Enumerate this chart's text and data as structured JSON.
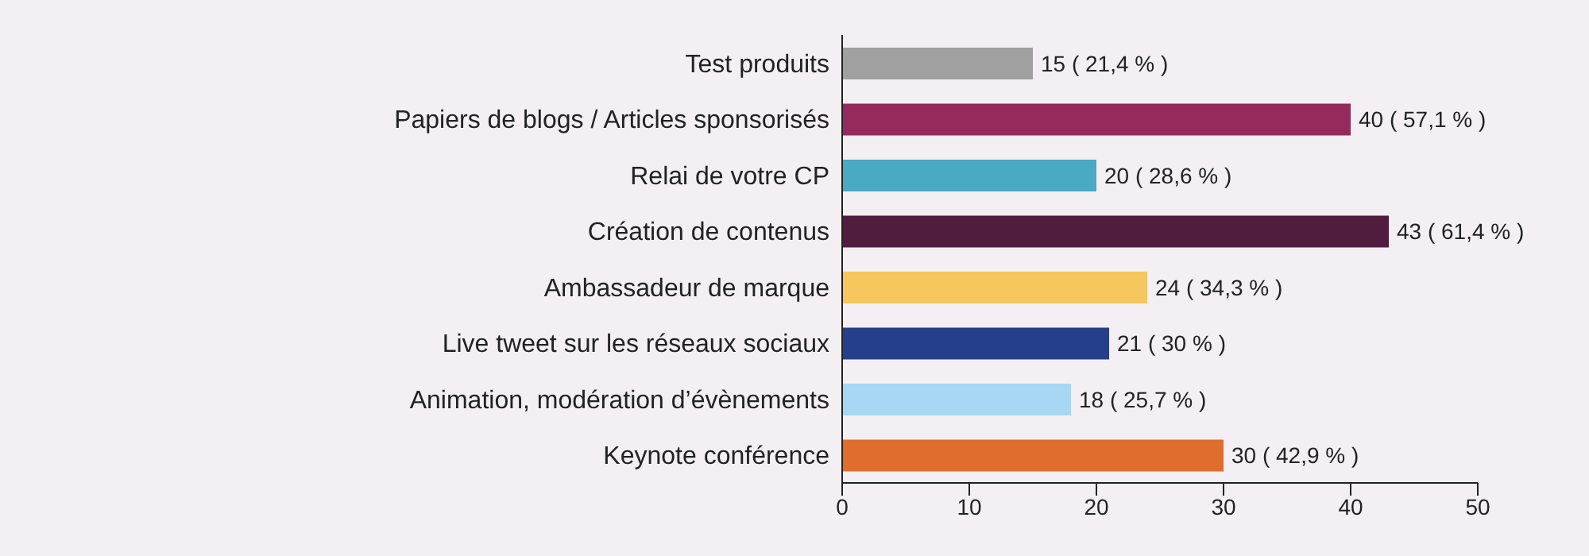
{
  "chart_data": {
    "type": "bar",
    "orientation": "horizontal",
    "categories": [
      "Test produits",
      "Papiers de blogs / Articles sponsorisés",
      "Relai de votre CP",
      "Création de contenus",
      "Ambassadeur de marque",
      "Live tweet sur les réseaux sociaux",
      "Animation, modération d’évènements",
      "Keynote conférence"
    ],
    "values": [
      15,
      40,
      20,
      43,
      24,
      21,
      18,
      30
    ],
    "colors": [
      "#a0a0a0",
      "#952a5c",
      "#4aa9c3",
      "#521c3f",
      "#f6c75e",
      "#253f8c",
      "#a7d7f3",
      "#e06c2d"
    ],
    "value_labels": [
      "15 ( 21,4  % )",
      "40 ( 57,1 % )",
      "20 ( 28,6 % )",
      "43 ( 61,4 % )",
      "24 ( 34,3 % )",
      "21 ( 30 % )",
      "18 ( 25,7 % )",
      "30 ( 42,9 % )"
    ],
    "xlim": [
      0,
      50
    ],
    "xticks": [
      0,
      10,
      20,
      30,
      40,
      50
    ]
  }
}
